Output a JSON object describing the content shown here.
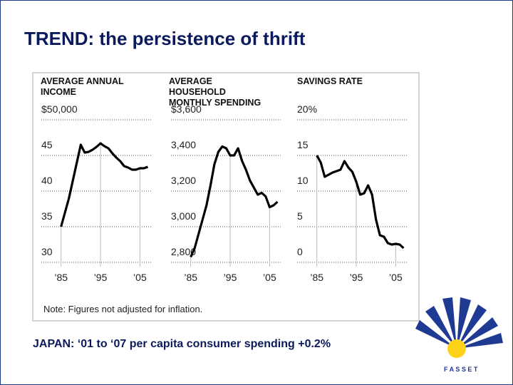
{
  "slide_title": "TREND: the persistence of thrift",
  "footer": "JAPAN: ‘01 to ‘07 per capita consumer spending +0.2%",
  "note": "Note: Figures not adjusted for inflation.",
  "logo_text": "F A S S E T",
  "chart_data": [
    {
      "type": "line",
      "title": "AVERAGE ANNUAL INCOME",
      "color": "#000000",
      "x": [
        1985,
        1986,
        1987,
        1988,
        1989,
        1990,
        1991,
        1992,
        1993,
        1994,
        1995,
        1996,
        1997,
        1998,
        1999,
        2000,
        2001,
        2002,
        2003,
        2004,
        2005,
        2006,
        2007
      ],
      "values": [
        35,
        37,
        39,
        41.5,
        44,
        46.5,
        45.4,
        45.5,
        45.8,
        46.2,
        46.7,
        46.3,
        46,
        45.3,
        44.7,
        44.2,
        43.5,
        43.3,
        43,
        43,
        43.2,
        43.2,
        43.4
      ],
      "xlim": [
        1980,
        2008
      ],
      "xticks": [
        {
          "value": 1985,
          "label": "’85"
        },
        {
          "value": 1995,
          "label": "’95"
        },
        {
          "value": 2005,
          "label": "’05"
        }
      ],
      "ylim": [
        30,
        50
      ],
      "yticks": [
        {
          "value": 50,
          "label": "$50,000"
        },
        45,
        40,
        35,
        30
      ],
      "grid": true
    },
    {
      "type": "line",
      "title": "AVERAGE HOUSEHOLD MONTHLY SPENDING",
      "color": "#000000",
      "x": [
        1985,
        1986,
        1987,
        1988,
        1989,
        1990,
        1991,
        1992,
        1993,
        1994,
        1995,
        1996,
        1997,
        1998,
        1999,
        2000,
        2001,
        2002,
        2003,
        2004,
        2005,
        2006,
        2007
      ],
      "values": [
        2830,
        2880,
        2960,
        3040,
        3120,
        3230,
        3350,
        3420,
        3450,
        3440,
        3400,
        3400,
        3440,
        3370,
        3320,
        3260,
        3220,
        3180,
        3190,
        3170,
        3110,
        3120,
        3140
      ],
      "xlim": [
        1980,
        2008
      ],
      "xticks": [
        {
          "value": 1985,
          "label": "’85"
        },
        {
          "value": 1995,
          "label": "’95"
        },
        {
          "value": 2005,
          "label": "’05"
        }
      ],
      "ylim": [
        2800,
        3600
      ],
      "yticks": [
        {
          "value": 3600,
          "label": "$3,600"
        },
        {
          "value": 3400,
          "label": "3,400"
        },
        {
          "value": 3200,
          "label": "3,200"
        },
        {
          "value": 3000,
          "label": "3,000"
        },
        {
          "value": 2800,
          "label": "2,800"
        }
      ],
      "grid": true
    },
    {
      "type": "line",
      "title": "SAVINGS RATE",
      "color": "#000000",
      "x": [
        1985,
        1986,
        1987,
        1988,
        1989,
        1990,
        1991,
        1992,
        1993,
        1994,
        1995,
        1996,
        1997,
        1998,
        1999,
        2000,
        2001,
        2002,
        2003,
        2004,
        2005,
        2006,
        2007
      ],
      "values": [
        15,
        14,
        12,
        12.3,
        12.6,
        12.8,
        13,
        14.2,
        13.3,
        12.7,
        11.3,
        9.5,
        9.7,
        10.8,
        9.5,
        6,
        3.8,
        3.6,
        2.7,
        2.5,
        2.6,
        2.5,
        2
      ],
      "xlim": [
        1980,
        2008
      ],
      "xticks": [
        {
          "value": 1985,
          "label": "’85"
        },
        {
          "value": 1995,
          "label": "’95"
        },
        {
          "value": 2005,
          "label": "’05"
        }
      ],
      "ylim": [
        0,
        20
      ],
      "yticks": [
        {
          "value": 20,
          "label": "20%"
        },
        15,
        10,
        5,
        0
      ],
      "grid": true
    }
  ]
}
